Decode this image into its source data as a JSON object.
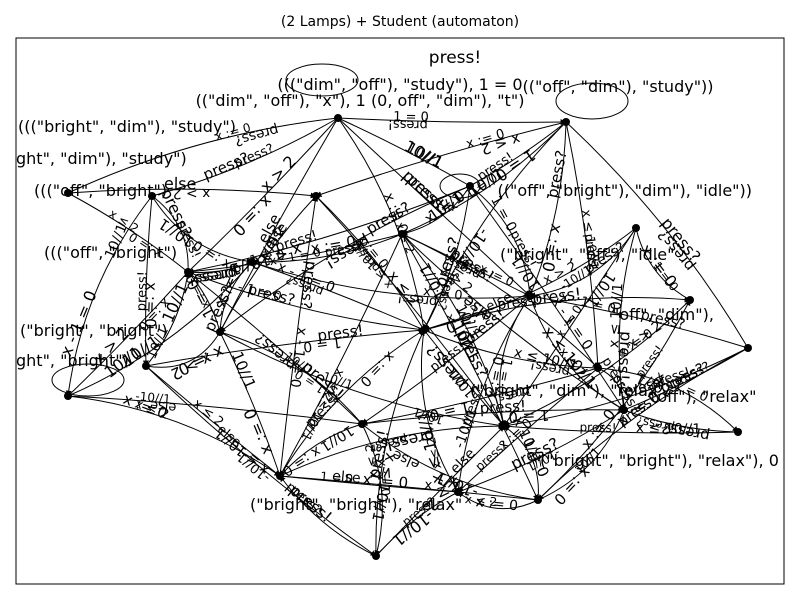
{
  "title": "(2 Lamps) + Student (automaton)",
  "style": {
    "stroke": "#000000",
    "background": "#ffffff"
  },
  "labels": {
    "top_action": "press!",
    "states": [
      "(((\"dim\", \"off\"), \"study\"), 1 = 0",
      "((\"dim\", \"off\"), \"x\"), 1 (0, off\", \"dim\"), \"t\")",
      "((\"off\", \"dim\"), \"study\"))",
      "(((\"bright\", \"dim\"), \"study\")",
      "ght\", \"dim\"), \"study\")",
      "(((\"off\", \"bright\")",
      "((\"off\", \"bright\"), \"dim\"), \"idle\"))",
      "(((\"off\", \"bright\")",
      "(\"bright\", \"bright\")",
      "ght\", \"bright\")",
      "\"off\", \"dim\"),",
      "(\"bright\", \"off\"), \"idle\"",
      "(\"bright\", \"bright\"), \"relax\"",
      "(\"bright\", \"bright\"), \"relax\"), 0",
      "(\"bright\", \"dim\"), \"relax\"",
      "\"off\"), \"relax\""
    ],
    "edges": [
      "press!",
      "press?",
      "x := 0",
      "x - 1 = 0",
      "x ≤ 10//1",
      "10//1",
      "press!",
      "x > 2",
      "x := 0",
      "-10//1",
      "1 = 0",
      "press?",
      "x ≤ 2",
      "10//1",
      "press!",
      "x := 0",
      "press?",
      "else"
    ]
  }
}
